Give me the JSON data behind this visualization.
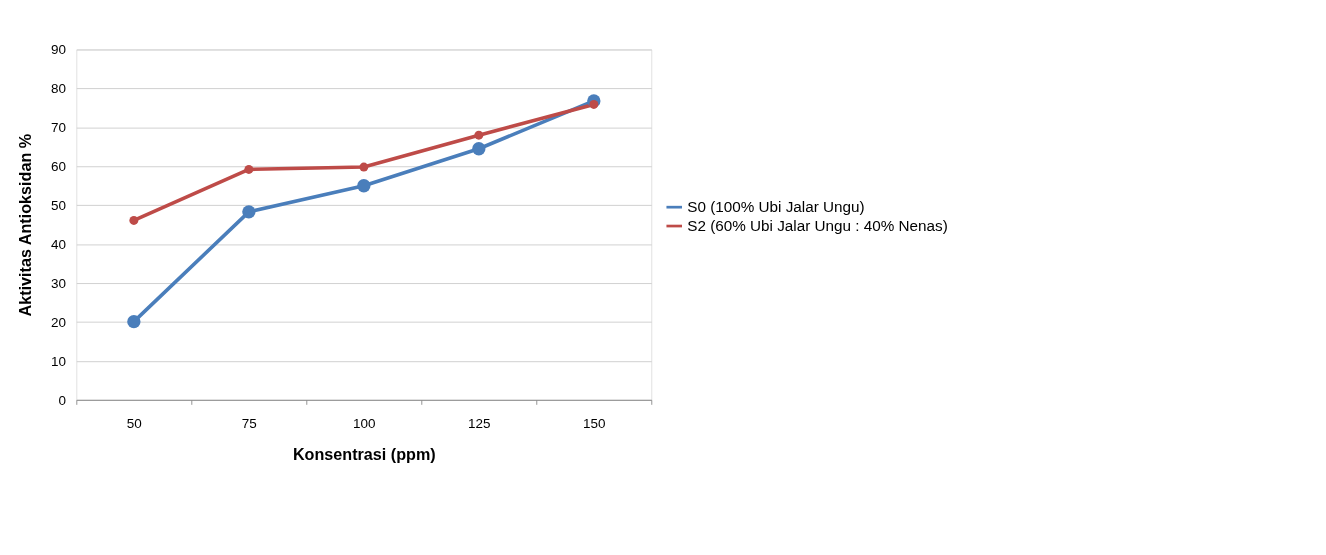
{
  "chart_data": {
    "type": "line",
    "xlabel": "Konsentrasi (ppm)",
    "ylabel": "Aktivitas Antioksidan %",
    "categories": [
      "50",
      "75",
      "100",
      "125",
      "150"
    ],
    "series": [
      {
        "name": "S0 (100% Ubi Jalar Ungu)",
        "color": "#4a7ebb",
        "values": [
          20.1,
          48.3,
          55.0,
          64.5,
          76.8
        ]
      },
      {
        "name": "S2 (60% Ubi Jalar Ungu : 40% Nenas)",
        "color": "#be4b48",
        "values": [
          46.1,
          59.2,
          59.8,
          68.0,
          75.9
        ]
      }
    ],
    "ylim": [
      0,
      90
    ],
    "yticks": [
      0,
      10,
      20,
      30,
      40,
      50,
      60,
      70,
      80,
      90
    ],
    "grid": "y",
    "legend": "right",
    "marker": "circle",
    "line_style": "solid"
  }
}
